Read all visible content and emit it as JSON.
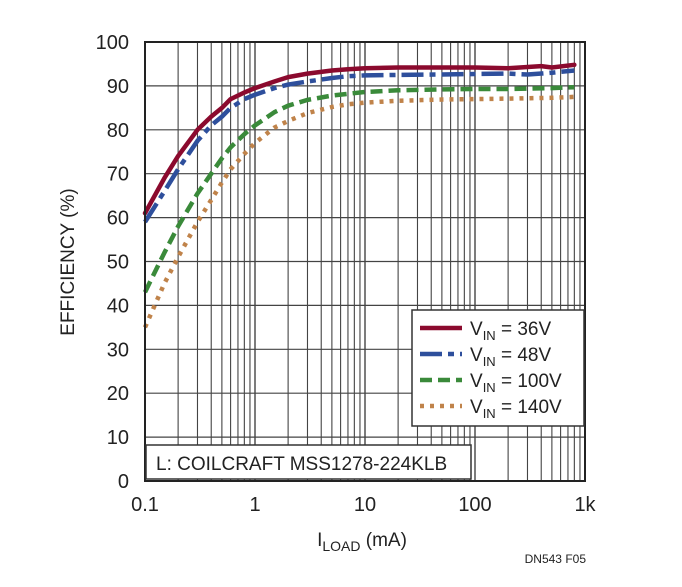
{
  "chart_data": {
    "type": "line",
    "xlabel_main": "I",
    "xlabel_sub": "LOAD",
    "xlabel_unit": " (mA)",
    "ylabel": "EFFICIENCY (%)",
    "x_scale": "log",
    "xlim": [
      0.1,
      1000
    ],
    "ylim": [
      0,
      100
    ],
    "x_ticks": [
      {
        "value": 0.1,
        "label": "0.1"
      },
      {
        "value": 1,
        "label": "1"
      },
      {
        "value": 10,
        "label": "10"
      },
      {
        "value": 100,
        "label": "100"
      },
      {
        "value": 1000,
        "label": "1k"
      }
    ],
    "y_ticks": [
      0,
      10,
      20,
      30,
      40,
      50,
      60,
      70,
      80,
      90,
      100
    ],
    "grid": true,
    "legend_position": "bottom-right",
    "annotation": "L: COILCRAFT MSS1278-224KLB",
    "footer": "DN543 F05",
    "series": [
      {
        "label_main": "V",
        "label_sub": "IN",
        "label_rest": " = 36V",
        "color": "#8b0a2e",
        "dash": "solid",
        "x": [
          0.1,
          0.15,
          0.2,
          0.3,
          0.4,
          0.5,
          0.6,
          0.8,
          1,
          1.5,
          2,
          3,
          5,
          7,
          10,
          20,
          50,
          100,
          200,
          400,
          500,
          800
        ],
        "y": [
          61,
          69,
          74,
          80,
          83,
          85,
          87,
          88.5,
          89.5,
          91,
          92,
          92.8,
          93.5,
          93.8,
          94,
          94.2,
          94.2,
          94.2,
          94,
          94.5,
          94.2,
          94.8
        ]
      },
      {
        "label_main": "V",
        "label_sub": "IN",
        "label_rest": " = 48V",
        "color": "#2e4f9c",
        "dash": "longdash",
        "x": [
          0.1,
          0.15,
          0.2,
          0.3,
          0.4,
          0.5,
          0.6,
          0.8,
          1,
          1.5,
          2,
          3,
          5,
          7,
          10,
          20,
          50,
          100,
          200,
          300,
          500,
          800
        ],
        "y": [
          59,
          66,
          71,
          77.5,
          81,
          83,
          85,
          87,
          88,
          89.5,
          90.3,
          91,
          91.8,
          92.2,
          92.4,
          92.5,
          92.6,
          92.7,
          92.8,
          92.6,
          93,
          93.5
        ]
      },
      {
        "label_main": "V",
        "label_sub": "IN",
        "label_rest": " = 100V",
        "color": "#3a8a3a",
        "dash": "dash",
        "x": [
          0.1,
          0.15,
          0.2,
          0.3,
          0.4,
          0.5,
          0.6,
          0.8,
          1,
          1.5,
          2,
          3,
          5,
          7,
          10,
          20,
          50,
          100,
          200,
          500,
          800
        ],
        "y": [
          43,
          52,
          58,
          65.5,
          70,
          73.5,
          76,
          79,
          81,
          84,
          85.5,
          86.8,
          87.8,
          88.2,
          88.6,
          89,
          89.2,
          89.3,
          89.3,
          89.5,
          89.7
        ]
      },
      {
        "label_main": "V",
        "label_sub": "IN",
        "label_rest": " = 140V",
        "color": "#c0834a",
        "dash": "dot",
        "x": [
          0.1,
          0.15,
          0.2,
          0.3,
          0.4,
          0.5,
          0.6,
          0.8,
          1,
          1.5,
          2,
          3,
          5,
          7,
          10,
          20,
          50,
          100,
          200,
          500,
          800
        ],
        "y": [
          35,
          45,
          51,
          59,
          64,
          68,
          71,
          74.5,
          77,
          80.5,
          82,
          83.8,
          85.2,
          85.8,
          86.2,
          86.6,
          86.9,
          87,
          87.1,
          87.3,
          87.5
        ]
      }
    ]
  }
}
